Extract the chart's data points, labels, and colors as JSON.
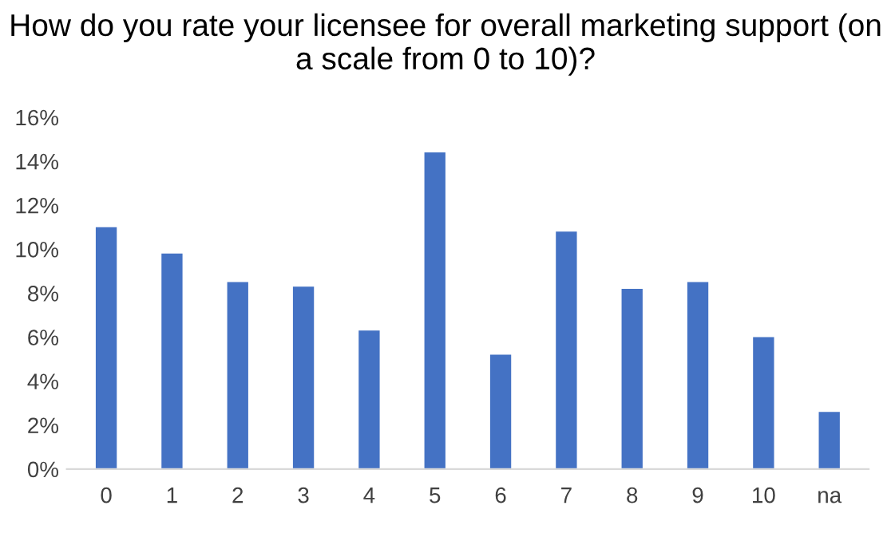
{
  "chart_data": {
    "type": "bar",
    "title": "How do you rate your licensee for overall marketing support (on a scale from 0 to 10)?",
    "categories": [
      "0",
      "1",
      "2",
      "3",
      "4",
      "5",
      "6",
      "7",
      "8",
      "9",
      "10",
      "na"
    ],
    "values": [
      11.0,
      9.8,
      8.5,
      8.3,
      6.3,
      14.4,
      5.2,
      10.8,
      8.2,
      8.5,
      6.0,
      2.6
    ],
    "color": "#4472c4",
    "ylim": [
      0,
      16
    ],
    "yticks": [
      {
        "value": 0,
        "label": "0%"
      },
      {
        "value": 2,
        "label": "2%"
      },
      {
        "value": 4,
        "label": "4%"
      },
      {
        "value": 6,
        "label": "6%"
      },
      {
        "value": 8,
        "label": "8%"
      },
      {
        "value": 10,
        "label": "10%"
      },
      {
        "value": 12,
        "label": "12%"
      },
      {
        "value": 14,
        "label": "14%"
      },
      {
        "value": 16,
        "label": "16%"
      }
    ],
    "grid": false
  }
}
